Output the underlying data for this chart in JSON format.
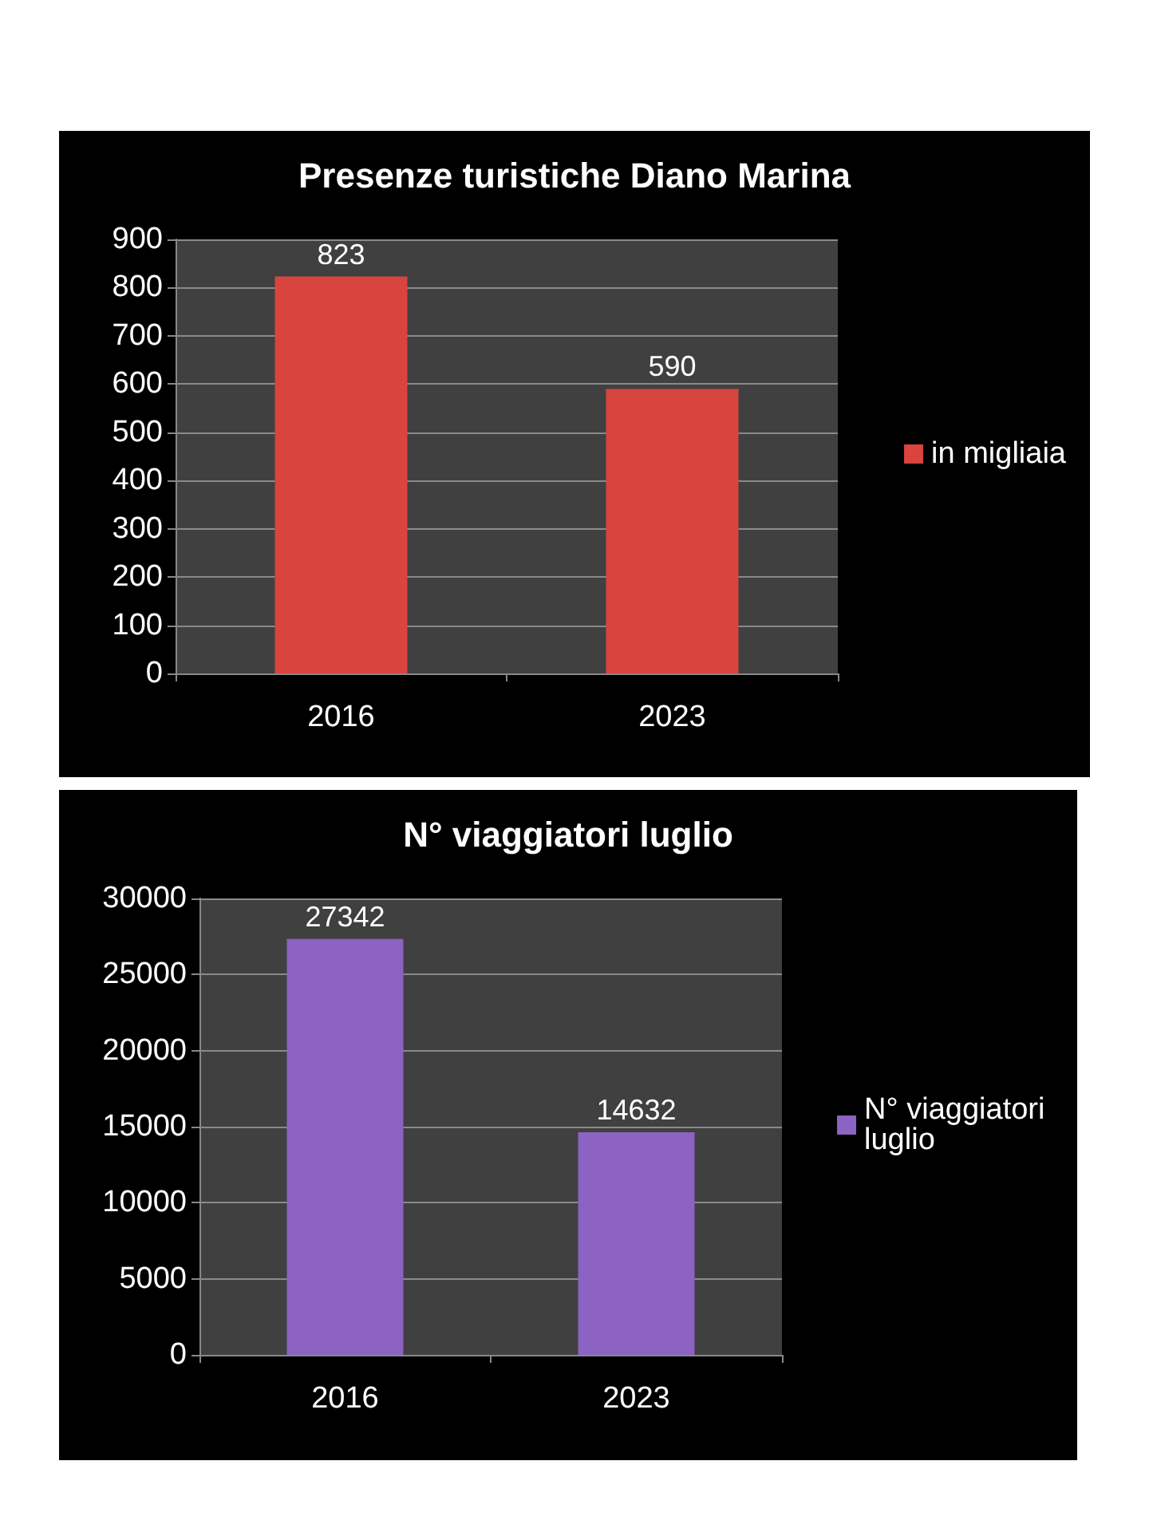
{
  "chart_data": [
    {
      "type": "bar",
      "title": "Presenze turistiche Diano Marina",
      "categories": [
        "2016",
        "2023"
      ],
      "series": [
        {
          "name": "in migliaia",
          "color": "#d9443f",
          "values": [
            823,
            590
          ]
        }
      ],
      "ylim": [
        0,
        900
      ],
      "yticks": [
        0,
        100,
        200,
        300,
        400,
        500,
        600,
        700,
        800,
        900
      ],
      "grid": "y",
      "legend": "right",
      "data_labels": true
    },
    {
      "type": "bar",
      "title": "N° viaggiatori luglio",
      "categories": [
        "2016",
        "2023"
      ],
      "series": [
        {
          "name": "N° viaggiatori luglio",
          "color": "#8c62c2",
          "values": [
            27342,
            14632
          ]
        }
      ],
      "ylim": [
        0,
        30000
      ],
      "yticks": [
        0,
        5000,
        10000,
        15000,
        20000,
        25000,
        30000
      ],
      "grid": "y",
      "legend": "right",
      "data_labels": true
    }
  ]
}
